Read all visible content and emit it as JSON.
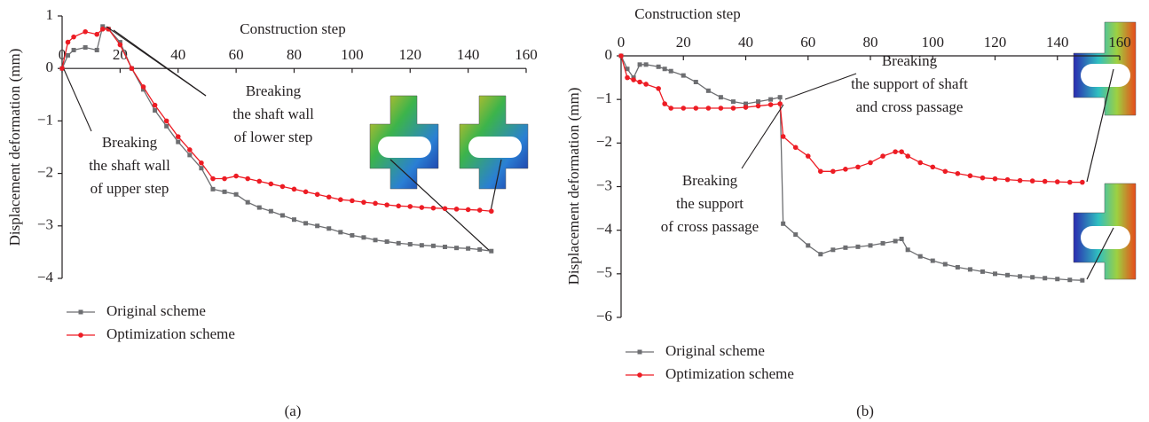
{
  "chart_data": [
    {
      "type": "line",
      "label": "(a)",
      "x_label": "Construction step",
      "y_label": "Displacement deformation (mm)",
      "xlim": [
        0,
        160
      ],
      "xticks": [
        0,
        20,
        40,
        60,
        80,
        100,
        120,
        140,
        160
      ],
      "ylim": [
        -4,
        1
      ],
      "yticks": [
        1,
        0,
        {
          "value": -1,
          "label": "−1"
        },
        {
          "value": -2,
          "label": "−2"
        },
        {
          "value": -3,
          "label": "−3"
        },
        {
          "value": -4,
          "label": "−4"
        }
      ],
      "x": [
        0,
        2,
        4,
        8,
        12,
        14,
        16,
        20,
        24,
        28,
        32,
        36,
        40,
        44,
        48,
        52,
        56,
        60,
        64,
        68,
        72,
        76,
        80,
        84,
        88,
        92,
        96,
        100,
        104,
        108,
        112,
        116,
        120,
        124,
        128,
        132,
        136,
        140,
        144,
        148
      ],
      "series": [
        {
          "name": "Original scheme",
          "color": "#6d6e71",
          "marker": "square",
          "values": [
            0,
            0.25,
            0.35,
            0.4,
            0.35,
            0.8,
            0.75,
            0.5,
            0,
            -0.4,
            -0.8,
            -1.1,
            -1.4,
            -1.65,
            -1.9,
            -2.3,
            -2.35,
            -2.4,
            -2.55,
            -2.65,
            -2.72,
            -2.8,
            -2.88,
            -2.95,
            -3.0,
            -3.05,
            -3.12,
            -3.18,
            -3.22,
            -3.27,
            -3.3,
            -3.33,
            -3.35,
            -3.37,
            -3.38,
            -3.4,
            -3.42,
            -3.43,
            -3.45,
            -3.48
          ]
        },
        {
          "name": "Optimization scheme",
          "color": "#ed1c24",
          "marker": "circle",
          "values": [
            0,
            0.5,
            0.6,
            0.7,
            0.65,
            0.75,
            0.75,
            0.45,
            0,
            -0.35,
            -0.7,
            -1.0,
            -1.3,
            -1.55,
            -1.8,
            -2.1,
            -2.1,
            -2.05,
            -2.1,
            -2.15,
            -2.2,
            -2.25,
            -2.3,
            -2.35,
            -2.4,
            -2.45,
            -2.5,
            -2.52,
            -2.55,
            -2.57,
            -2.6,
            -2.62,
            -2.63,
            -2.65,
            -2.66,
            -2.67,
            -2.68,
            -2.69,
            -2.7,
            -2.72
          ]
        }
      ],
      "annotations": [
        {
          "text": [
            "Breaking",
            "the shaft wall",
            "of upper step"
          ]
        },
        {
          "text": [
            "Breaking",
            "the shaft wall",
            "of lower step"
          ]
        }
      ]
    },
    {
      "type": "line",
      "label": "(b)",
      "x_label": "Construction step",
      "y_label": "Displacement deformation (mm)",
      "xlim": [
        0,
        160
      ],
      "xticks": [
        0,
        20,
        40,
        60,
        80,
        100,
        120,
        140,
        160
      ],
      "ylim": [
        -6,
        0
      ],
      "yticks": [
        0,
        {
          "value": -1,
          "label": "−1"
        },
        {
          "value": -2,
          "label": "−2"
        },
        {
          "value": -3,
          "label": "−3"
        },
        {
          "value": -4,
          "label": "−4"
        },
        {
          "value": -5,
          "label": "−5"
        },
        {
          "value": -6,
          "label": "−6"
        }
      ],
      "x": [
        0,
        2,
        4,
        6,
        8,
        12,
        14,
        16,
        20,
        24,
        28,
        32,
        36,
        40,
        44,
        48,
        51,
        52,
        56,
        60,
        64,
        68,
        72,
        76,
        80,
        84,
        88,
        90,
        92,
        96,
        100,
        104,
        108,
        112,
        116,
        120,
        124,
        128,
        132,
        136,
        140,
        144,
        148
      ],
      "series": [
        {
          "name": "Original scheme",
          "color": "#6d6e71",
          "marker": "square",
          "values": [
            0,
            -0.3,
            -0.5,
            -0.2,
            -0.2,
            -0.25,
            -0.3,
            -0.35,
            -0.45,
            -0.6,
            -0.8,
            -0.95,
            -1.05,
            -1.1,
            -1.05,
            -1.0,
            -0.95,
            -3.85,
            -4.1,
            -4.35,
            -4.55,
            -4.45,
            -4.4,
            -4.38,
            -4.35,
            -4.3,
            -4.25,
            -4.2,
            -4.45,
            -4.6,
            -4.7,
            -4.78,
            -4.85,
            -4.9,
            -4.95,
            -5.0,
            -5.03,
            -5.06,
            -5.08,
            -5.1,
            -5.12,
            -5.14,
            -5.15
          ]
        },
        {
          "name": "Optimization scheme",
          "color": "#ed1c24",
          "marker": "circle",
          "values": [
            0,
            -0.5,
            -0.55,
            -0.6,
            -0.65,
            -0.75,
            -1.1,
            -1.2,
            -1.2,
            -1.2,
            -1.2,
            -1.2,
            -1.2,
            -1.18,
            -1.15,
            -1.12,
            -1.1,
            -1.85,
            -2.1,
            -2.3,
            -2.65,
            -2.65,
            -2.6,
            -2.55,
            -2.45,
            -2.3,
            -2.2,
            -2.2,
            -2.3,
            -2.45,
            -2.55,
            -2.65,
            -2.7,
            -2.75,
            -2.8,
            -2.82,
            -2.84,
            -2.86,
            -2.87,
            -2.88,
            -2.89,
            -2.9,
            -2.9
          ]
        }
      ],
      "annotations": [
        {
          "text": [
            "Breaking",
            "the support of shaft",
            "and cross passage"
          ]
        },
        {
          "text": [
            "Breaking",
            "the support",
            "of cross passage"
          ]
        }
      ]
    }
  ]
}
